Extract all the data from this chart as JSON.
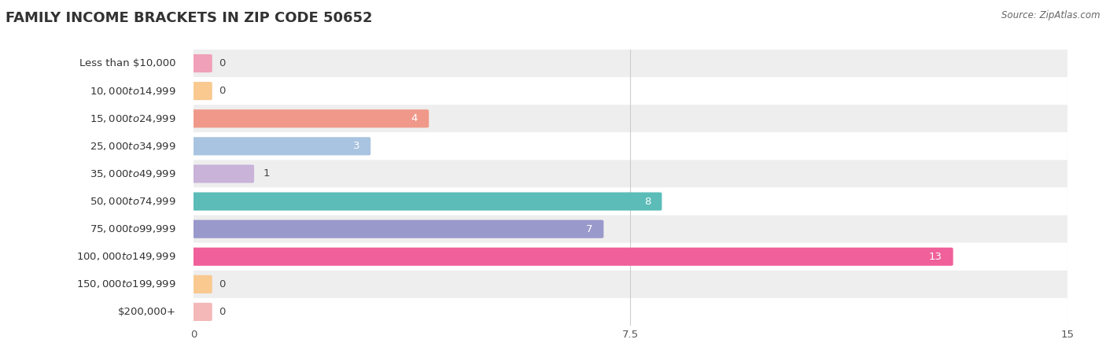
{
  "title": "FAMILY INCOME BRACKETS IN ZIP CODE 50652",
  "source_text": "Source: ZipAtlas.com",
  "categories": [
    "Less than $10,000",
    "$10,000 to $14,999",
    "$15,000 to $24,999",
    "$25,000 to $34,999",
    "$35,000 to $49,999",
    "$50,000 to $74,999",
    "$75,000 to $99,999",
    "$100,000 to $149,999",
    "$150,000 to $199,999",
    "$200,000+"
  ],
  "values": [
    0,
    0,
    4,
    3,
    1,
    8,
    7,
    13,
    0,
    0
  ],
  "bar_colors": [
    "#f0a0b8",
    "#f9c990",
    "#f0998a",
    "#a8c4e0",
    "#c9b3d9",
    "#5bbcb8",
    "#9999cc",
    "#f0609a",
    "#f9c990",
    "#f4b8b8"
  ],
  "row_bg_color": "#eeeeee",
  "row_fg_color": "#ffffff",
  "xlim": [
    0,
    15
  ],
  "xticks": [
    0,
    7.5,
    15
  ],
  "title_fontsize": 13,
  "label_fontsize": 9.5,
  "value_fontsize": 9.5,
  "bar_height": 0.58,
  "background_color": "#ffffff",
  "value_label_color_inside": "#ffffff",
  "value_label_color_outside": "#444444"
}
